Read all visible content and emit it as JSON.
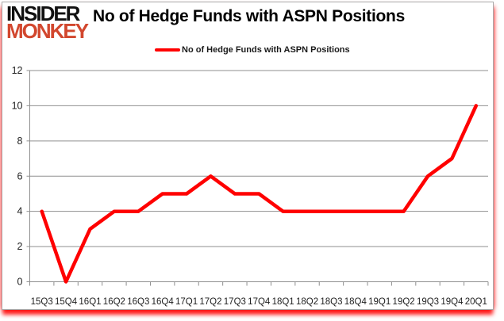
{
  "header": {
    "logo_line1": "INSIDER",
    "logo_line2": "MONKEY",
    "title": "No of Hedge Funds with ASPN Positions"
  },
  "legend": {
    "label": "No of Hedge Funds with ASPN Positions"
  },
  "chart_data": {
    "type": "line",
    "title": "No of Hedge Funds with ASPN Positions",
    "categories": [
      "15Q3",
      "15Q4",
      "16Q1",
      "16Q2",
      "16Q3",
      "16Q4",
      "17Q1",
      "17Q2",
      "17Q3",
      "17Q4",
      "18Q1",
      "18Q2",
      "18Q3",
      "18Q4",
      "19Q1",
      "19Q2",
      "19Q3",
      "19Q4",
      "20Q1"
    ],
    "series": [
      {
        "name": "No of Hedge Funds with ASPN Positions",
        "values": [
          4,
          0,
          3,
          4,
          4,
          5,
          5,
          6,
          5,
          5,
          4,
          4,
          4,
          4,
          4,
          4,
          6,
          7,
          10
        ],
        "color": "#ff0000"
      }
    ],
    "xlabel": "",
    "ylabel": "",
    "ylim": [
      0,
      12
    ],
    "ytick_step": 2,
    "grid": "horizontal",
    "legend_position": "top-center"
  },
  "colors": {
    "series_red": "#ff0000",
    "logo_red": "#d2472e",
    "gridline": "#8f8f8f",
    "axis": "#8f8f8f",
    "tick_label": "#1f1f1f",
    "frame_border": "#a9a9a9",
    "glow_red": "#ff0000"
  }
}
